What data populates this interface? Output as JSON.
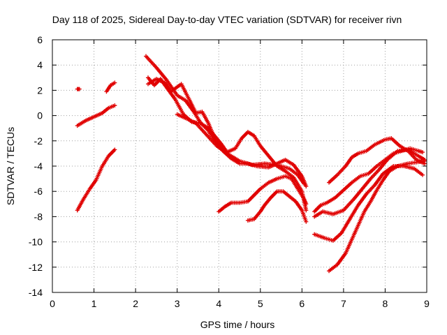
{
  "chart_data": {
    "type": "scatter",
    "title": "Day 118 of 2025, Sidereal Day-to-day VTEC variation (SDTVAR) for receiver rivn",
    "xlabel": "GPS time / hours",
    "ylabel": "SDTVAR / TECUs",
    "xlim": [
      0,
      9
    ],
    "ylim": [
      -14,
      6
    ],
    "xticks": [
      0,
      1,
      2,
      3,
      4,
      5,
      6,
      7,
      8,
      9
    ],
    "yticks": [
      -14,
      -12,
      -10,
      -8,
      -6,
      -4,
      -2,
      0,
      2,
      4,
      6
    ],
    "grid": true,
    "marker": "+",
    "color": "#e00000",
    "series": [
      {
        "name": "s1",
        "points": [
          [
            0.6,
            -0.8
          ],
          [
            0.8,
            -0.4
          ],
          [
            1.0,
            -0.1
          ],
          [
            1.2,
            0.2
          ],
          [
            1.35,
            0.6
          ],
          [
            1.5,
            0.8
          ]
        ]
      },
      {
        "name": "s2",
        "points": [
          [
            0.6,
            -7.5
          ],
          [
            0.75,
            -6.6
          ],
          [
            0.9,
            -5.8
          ],
          [
            1.05,
            -5.1
          ],
          [
            1.2,
            -4.0
          ],
          [
            1.35,
            -3.2
          ],
          [
            1.5,
            -2.7
          ]
        ]
      },
      {
        "name": "s3",
        "points": [
          [
            0.6,
            2.1
          ],
          [
            0.65,
            2.1
          ]
        ]
      },
      {
        "name": "s4",
        "points": [
          [
            1.3,
            1.9
          ],
          [
            1.4,
            2.4
          ],
          [
            1.5,
            2.6
          ]
        ]
      },
      {
        "name": "s5",
        "points": [
          [
            2.25,
            4.7
          ],
          [
            2.5,
            3.8
          ],
          [
            2.75,
            2.8
          ],
          [
            3.0,
            1.6
          ],
          [
            3.2,
            1.2
          ],
          [
            3.4,
            0.3
          ],
          [
            3.55,
            -0.5
          ],
          [
            3.75,
            -1.2
          ],
          [
            3.9,
            -2.0
          ],
          [
            4.05,
            -2.6
          ],
          [
            4.2,
            -3.0
          ]
        ]
      },
      {
        "name": "s6",
        "points": [
          [
            2.3,
            2.5
          ],
          [
            2.5,
            2.9
          ],
          [
            2.7,
            2.6
          ],
          [
            2.85,
            1.9
          ],
          [
            3.1,
            2.5
          ],
          [
            3.3,
            1.2
          ],
          [
            3.45,
            0.2
          ],
          [
            3.6,
            0.3
          ],
          [
            3.75,
            -0.6
          ],
          [
            3.9,
            -1.8
          ],
          [
            4.1,
            -2.8
          ],
          [
            4.3,
            -3.4
          ],
          [
            4.5,
            -3.8
          ],
          [
            4.7,
            -3.8
          ],
          [
            4.9,
            -4.0
          ],
          [
            5.2,
            -4.1
          ],
          [
            5.4,
            -3.8
          ],
          [
            5.6,
            -3.5
          ],
          [
            5.8,
            -3.9
          ],
          [
            6.0,
            -4.8
          ],
          [
            6.1,
            -5.6
          ]
        ]
      },
      {
        "name": "s7",
        "points": [
          [
            2.3,
            3.0
          ],
          [
            2.45,
            2.4
          ],
          [
            2.6,
            2.9
          ],
          [
            2.75,
            2.2
          ],
          [
            2.95,
            1.3
          ],
          [
            3.15,
            0.1
          ],
          [
            3.35,
            -0.5
          ],
          [
            3.55,
            -0.6
          ],
          [
            3.75,
            -1.0
          ],
          [
            3.9,
            -1.6
          ],
          [
            4.05,
            -2.2
          ],
          [
            4.2,
            -2.9
          ],
          [
            4.4,
            -2.6
          ],
          [
            4.55,
            -1.8
          ],
          [
            4.7,
            -1.3
          ],
          [
            4.85,
            -1.6
          ],
          [
            5.0,
            -2.4
          ],
          [
            5.2,
            -3.2
          ],
          [
            5.4,
            -4.0
          ],
          [
            5.6,
            -4.4
          ],
          [
            5.8,
            -4.9
          ],
          [
            6.0,
            -6.0
          ],
          [
            6.1,
            -7.5
          ]
        ]
      },
      {
        "name": "s8",
        "points": [
          [
            4.0,
            -7.6
          ],
          [
            4.15,
            -7.2
          ],
          [
            4.3,
            -6.9
          ],
          [
            4.5,
            -6.9
          ],
          [
            4.7,
            -6.8
          ],
          [
            4.85,
            -6.3
          ],
          [
            5.0,
            -5.8
          ],
          [
            5.2,
            -5.3
          ],
          [
            5.4,
            -5.0
          ],
          [
            5.6,
            -4.8
          ],
          [
            5.75,
            -5.0
          ],
          [
            5.9,
            -5.8
          ],
          [
            6.05,
            -6.6
          ],
          [
            6.1,
            -7.0
          ]
        ]
      },
      {
        "name": "s9",
        "points": [
          [
            3.0,
            0.1
          ],
          [
            3.2,
            -0.2
          ],
          [
            3.45,
            -0.6
          ],
          [
            3.7,
            -1.5
          ],
          [
            3.95,
            -2.4
          ],
          [
            4.2,
            -3.0
          ],
          [
            4.5,
            -3.6
          ],
          [
            4.8,
            -3.9
          ],
          [
            5.1,
            -3.8
          ],
          [
            5.4,
            -3.9
          ],
          [
            5.7,
            -4.2
          ],
          [
            5.9,
            -4.7
          ],
          [
            6.05,
            -5.4
          ]
        ]
      },
      {
        "name": "s10",
        "points": [
          [
            4.7,
            -8.3
          ],
          [
            4.85,
            -8.2
          ],
          [
            5.0,
            -7.6
          ],
          [
            5.1,
            -7.1
          ],
          [
            5.25,
            -6.5
          ],
          [
            5.4,
            -6.0
          ],
          [
            5.55,
            -6.0
          ],
          [
            5.7,
            -6.4
          ],
          [
            5.85,
            -6.8
          ],
          [
            6.0,
            -7.5
          ],
          [
            6.1,
            -8.4
          ]
        ]
      },
      {
        "name": "s11",
        "points": [
          [
            6.3,
            -7.6
          ],
          [
            6.45,
            -7.1
          ],
          [
            6.6,
            -6.9
          ],
          [
            6.8,
            -6.5
          ],
          [
            7.0,
            -5.9
          ],
          [
            7.2,
            -5.3
          ],
          [
            7.4,
            -4.8
          ],
          [
            7.6,
            -4.6
          ],
          [
            7.8,
            -4.0
          ],
          [
            8.0,
            -3.5
          ],
          [
            8.2,
            -3.0
          ],
          [
            8.4,
            -2.8
          ],
          [
            8.6,
            -2.6
          ],
          [
            8.8,
            -2.8
          ],
          [
            8.9,
            -2.9
          ]
        ]
      },
      {
        "name": "s12",
        "points": [
          [
            6.3,
            -8.0
          ],
          [
            6.5,
            -7.6
          ],
          [
            6.75,
            -7.8
          ],
          [
            7.0,
            -7.5
          ],
          [
            7.25,
            -6.6
          ],
          [
            7.45,
            -5.8
          ],
          [
            7.65,
            -5.0
          ],
          [
            7.85,
            -4.3
          ],
          [
            8.05,
            -3.5
          ],
          [
            8.3,
            -2.8
          ],
          [
            8.55,
            -2.7
          ],
          [
            8.8,
            -3.2
          ],
          [
            8.95,
            -3.5
          ]
        ]
      },
      {
        "name": "s13",
        "points": [
          [
            6.3,
            -9.4
          ],
          [
            6.55,
            -9.7
          ],
          [
            6.75,
            -9.9
          ],
          [
            6.95,
            -9.3
          ],
          [
            7.15,
            -8.2
          ],
          [
            7.35,
            -7.1
          ],
          [
            7.55,
            -6.2
          ],
          [
            7.75,
            -5.5
          ],
          [
            7.95,
            -4.6
          ],
          [
            8.2,
            -4.0
          ],
          [
            8.45,
            -4.0
          ],
          [
            8.7,
            -4.2
          ],
          [
            8.9,
            -4.7
          ]
        ]
      },
      {
        "name": "s14",
        "points": [
          [
            6.65,
            -5.3
          ],
          [
            6.85,
            -4.7
          ],
          [
            7.05,
            -4.0
          ],
          [
            7.2,
            -3.3
          ],
          [
            7.35,
            -3.0
          ],
          [
            7.55,
            -2.8
          ],
          [
            7.75,
            -2.3
          ],
          [
            8.0,
            -1.9
          ],
          [
            8.15,
            -1.8
          ],
          [
            8.35,
            -2.4
          ],
          [
            8.55,
            -2.8
          ],
          [
            8.75,
            -3.5
          ],
          [
            8.95,
            -3.8
          ]
        ]
      },
      {
        "name": "s15",
        "points": [
          [
            6.65,
            -12.3
          ],
          [
            6.85,
            -11.8
          ],
          [
            7.05,
            -10.9
          ],
          [
            7.2,
            -9.8
          ],
          [
            7.35,
            -8.7
          ],
          [
            7.5,
            -7.6
          ],
          [
            7.65,
            -6.8
          ],
          [
            7.8,
            -5.9
          ],
          [
            7.95,
            -5.1
          ],
          [
            8.1,
            -4.4
          ],
          [
            8.3,
            -4.0
          ],
          [
            8.55,
            -3.8
          ],
          [
            8.75,
            -3.7
          ],
          [
            8.95,
            -3.6
          ]
        ]
      }
    ]
  }
}
